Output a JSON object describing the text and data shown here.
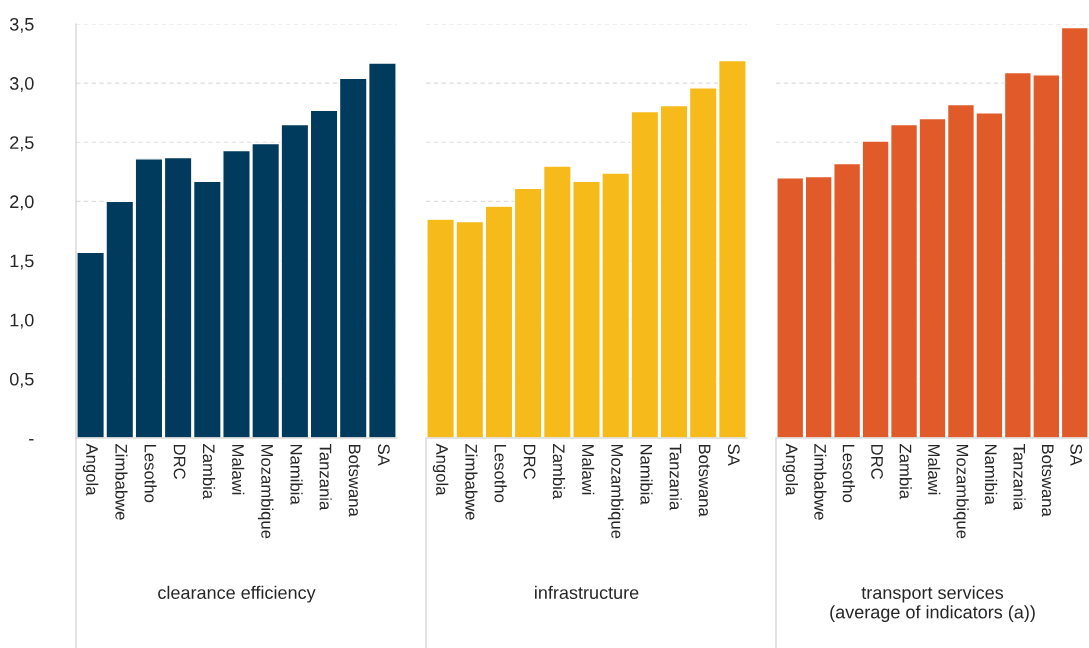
{
  "chart_data": [
    {
      "type": "bar",
      "xlabel": "clearance efficiency",
      "categories": [
        "Angola",
        "Zimbabwe",
        "Lesotho",
        "DRC",
        "Zambia",
        "Malawi",
        "Mozambique",
        "Namibia",
        "Tanzania",
        "Botswana",
        "SA"
      ],
      "values": [
        1.57,
        2.0,
        2.36,
        2.37,
        2.17,
        2.43,
        2.49,
        2.65,
        2.77,
        3.04,
        3.17
      ],
      "color": "#003a5d",
      "ylim": [
        0,
        3.5
      ],
      "yticks": [
        {
          "value": 0,
          "label": "-"
        },
        {
          "value": 0.5,
          "label": "0,5"
        },
        {
          "value": 1,
          "label": "1,0"
        },
        {
          "value": 1.5,
          "label": "1,5"
        },
        {
          "value": 2,
          "label": "2,0"
        },
        {
          "value": 2.5,
          "label": "2,5"
        },
        {
          "value": 3,
          "label": "3,0"
        },
        {
          "value": 3.5,
          "label": "3,5"
        }
      ],
      "grid": "y"
    },
    {
      "type": "bar",
      "xlabel": "infrastructure",
      "categories": [
        "Angola",
        "Zimbabwe",
        "Lesotho",
        "DRC",
        "Zambia",
        "Malawi",
        "Mozambique",
        "Namibia",
        "Tanzania",
        "Botswana",
        "SA"
      ],
      "values": [
        1.85,
        1.83,
        1.96,
        2.11,
        2.3,
        2.17,
        2.24,
        2.76,
        2.81,
        2.96,
        3.19
      ],
      "color": "#f6bb1a",
      "ylim": [
        0,
        3.5
      ],
      "yticks": [
        {
          "value": 0,
          "label": null
        },
        {
          "value": 0.5,
          "label": null
        },
        {
          "value": 1,
          "label": null
        },
        {
          "value": 1.5,
          "label": null
        },
        {
          "value": 2,
          "label": null
        },
        {
          "value": 2.5,
          "label": null
        },
        {
          "value": 3,
          "label": null
        },
        {
          "value": 3.5,
          "label": null
        }
      ],
      "grid": "y",
      "tick_labels": "x"
    },
    {
      "type": "bar",
      "xlabel": "transport services\n(average of indicators (a))",
      "categories": [
        "Angola",
        "Zimbabwe",
        "Lesotho",
        "DRC",
        "Zambia",
        "Malawi",
        "Mozambique",
        "Namibia",
        "Tanzania",
        "Botswana",
        "SA"
      ],
      "values": [
        2.2,
        2.21,
        2.32,
        2.51,
        2.65,
        2.7,
        2.82,
        2.75,
        3.09,
        3.07,
        3.47
      ],
      "color": "#e05a2a",
      "ylim": [
        0,
        3.5
      ],
      "yticks": [
        {
          "value": 0,
          "label": null
        },
        {
          "value": 0.5,
          "label": null
        },
        {
          "value": 1,
          "label": null
        },
        {
          "value": 1.5,
          "label": null
        },
        {
          "value": 2,
          "label": null
        },
        {
          "value": 2.5,
          "label": null
        },
        {
          "value": 3,
          "label": null
        },
        {
          "value": 3.5,
          "label": null
        }
      ],
      "grid": "y",
      "tick_labels": "x"
    }
  ]
}
